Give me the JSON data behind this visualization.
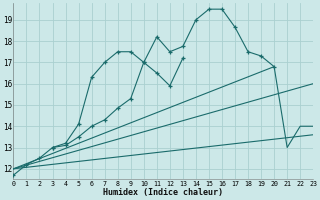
{
  "xlabel": "Humidex (Indice chaleur)",
  "bg_color": "#cce8e8",
  "grid_color": "#aad0d0",
  "line_color": "#1a6b6b",
  "xlim": [
    0,
    23
  ],
  "ylim": [
    11.5,
    19.8
  ],
  "xticks": [
    0,
    1,
    2,
    3,
    4,
    5,
    6,
    7,
    8,
    9,
    10,
    11,
    12,
    13,
    14,
    15,
    16,
    17,
    18,
    19,
    20,
    21,
    22,
    23
  ],
  "yticks": [
    12,
    13,
    14,
    15,
    16,
    17,
    18,
    19
  ],
  "series1_x": [
    0,
    1,
    2,
    3,
    4,
    5,
    6,
    7,
    8,
    9,
    10,
    11,
    12,
    13,
    14,
    15,
    16,
    17,
    18,
    19,
    20
  ],
  "series1_y": [
    11.7,
    12.2,
    12.5,
    13.0,
    13.1,
    13.5,
    14.0,
    14.3,
    14.85,
    15.3,
    17.0,
    18.2,
    17.5,
    17.75,
    19.0,
    19.5,
    19.5,
    18.65,
    17.5,
    17.3,
    16.8
  ],
  "series2_x": [
    3,
    4,
    5,
    6,
    7,
    8,
    9,
    10,
    11,
    12,
    13
  ],
  "series2_y": [
    13.0,
    13.2,
    14.1,
    16.3,
    17.0,
    17.5,
    17.5,
    17.0,
    16.5,
    15.9,
    17.2
  ],
  "series3_x": [
    0,
    23
  ],
  "series3_y": [
    12.0,
    13.6
  ],
  "series4_x": [
    0,
    20,
    21,
    22,
    23
  ],
  "series4_y": [
    12.0,
    16.8,
    13.0,
    14.0,
    14.0
  ],
  "series5_x": [
    0,
    23
  ],
  "series5_y": [
    12.0,
    16.0
  ]
}
